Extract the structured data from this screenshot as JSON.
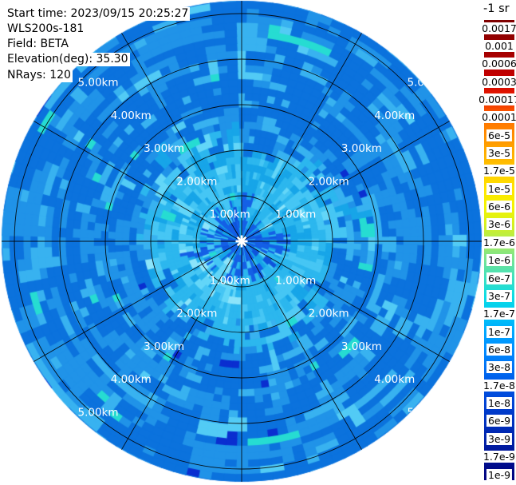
{
  "header": {
    "lines": [
      "Start time: 2023/09/15 20:25:27",
      "WLS200s-181",
      "Field: BETA",
      "Elevation(deg): 35.30",
      "NRays: 120"
    ]
  },
  "colorbar": {
    "title": "-1 sr",
    "ticks": [
      "0.0017",
      "0.001",
      "0.0006",
      "0.0003",
      "0.00017",
      "0.0001",
      "6e-5",
      "3e-5",
      "1.7e-5",
      "1e-5",
      "6e-6",
      "3e-6",
      "1.7e-6",
      "1e-6",
      "6e-7",
      "3e-7",
      "1.7e-7",
      "1e-7",
      "6e-8",
      "3e-8",
      "1.7e-8",
      "1e-8",
      "6e-9",
      "3e-9",
      "1.7e-9",
      "1e-9"
    ],
    "gradient_top_to_bottom": [
      "#7e0000 0%",
      "#880000 1.7%",
      "#9c0000 5.6%",
      "#b20000 9.5%",
      "#cc0000 13.4%",
      "#ee2200 17.2%",
      "#ff6f00 21.1%",
      "#ff8c00 25%",
      "#ffae00 28.9%",
      "#ffc900 32.8%",
      "#ffe400 36.6%",
      "#f4f400 40.5%",
      "#d6f01e 44.4%",
      "#aaec5a 48.3%",
      "#74e494 52.2%",
      "#3ce0c0 56.1%",
      "#0cdce4 60%",
      "#00c8f4 63.8%",
      "#00a8ff 67.7%",
      "#008cff 71.6%",
      "#0070f4 75.5%",
      "#0055e4 79.4%",
      "#0042d4 83.3%",
      "#0032c0 87.2%",
      "#0022aa 91.1%",
      "#001294 94.9%",
      "#000582 98.8%",
      "#000080 100%"
    ]
  },
  "chart_data": {
    "type": "heatmap",
    "subtype": "polar_ppi_scan",
    "title": "",
    "field": "BETA",
    "start_time": "2023/09/15 20:25:27",
    "instrument": "WLS200s-181",
    "elevation_deg": 35.3,
    "n_rays": 120,
    "n_spokes": 12,
    "spoke_interval_deg": 30,
    "ring_interval_km": 1,
    "range_rings_km": [
      1,
      2,
      3,
      4,
      5
    ],
    "ring_labels": [
      "1.00km",
      "2.00km",
      "3.00km",
      "4.00km",
      "5.00km"
    ],
    "max_range_km": 5.33,
    "colorbar_units": "-1 sr",
    "colorbar_ticks": [
      "0.0017",
      "0.001",
      "0.0006",
      "0.0003",
      "0.00017",
      "0.0001",
      "6e-5",
      "3e-5",
      "1.7e-5",
      "1e-5",
      "6e-6",
      "3e-6",
      "1.7e-6",
      "1e-6",
      "6e-7",
      "3e-7",
      "1.7e-7",
      "1e-7",
      "6e-8",
      "3e-8",
      "1.7e-8",
      "1e-8",
      "6e-9",
      "3e-9",
      "1.7e-9",
      "1e-9"
    ],
    "value_range": [
      "1e-9",
      "0.0017"
    ],
    "scale": "log",
    "palette": {
      "core": "#1560e6",
      "core2": "#0f55dd",
      "inner_base": "#2cb7ee",
      "inner_dark": "#17a5e8",
      "inner_light": "#46c6f4",
      "inner_bright": "#63d6f8",
      "inner_pale": "#8ce4fa",
      "outer_base": "#0b72dd",
      "outer_mid": "#2093e8",
      "outer_light": "#38b2f0",
      "outer_cyan": "#52cbf5",
      "teal": "#26dcd2",
      "navy": "#0a2ed0"
    },
    "zones_km": {
      "center_core_blob": [
        0,
        0.55
      ],
      "inner_cyan_region": [
        0.55,
        2.0
      ],
      "outer_blue_region": [
        2.0,
        5.33
      ]
    },
    "grid_color": "#000000",
    "ring_label_color": "#ffffff",
    "legend_position": "right"
  }
}
